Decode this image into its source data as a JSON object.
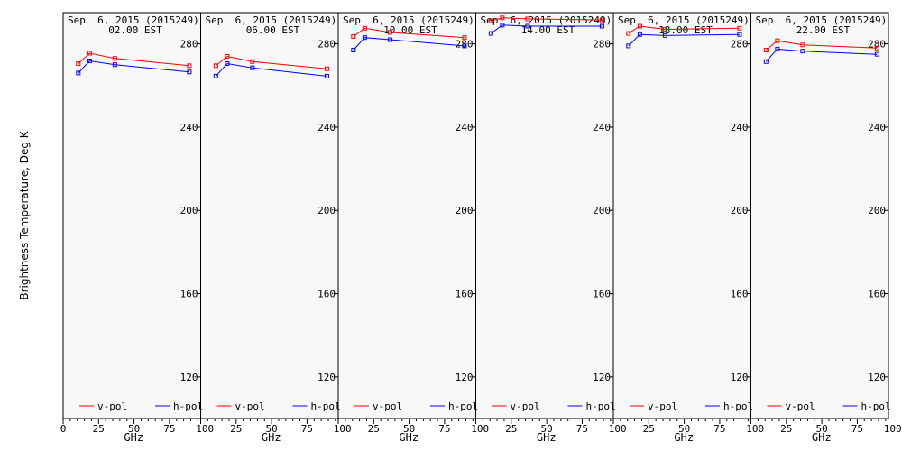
{
  "chart_data": {
    "type": "line",
    "ylabel": "Brightness Temperature, Deg K",
    "ylim": [
      100,
      295
    ],
    "xlim": [
      0,
      97
    ],
    "yticks": [
      120,
      160,
      200,
      240,
      280
    ],
    "xtick_labels": [
      "0",
      "25",
      "50",
      "75",
      "100"
    ],
    "xtick_values": [
      0,
      25,
      50,
      75,
      100
    ],
    "grid": false,
    "legend_placement": "bottom",
    "colors": {
      "v-pol": "#ff0000",
      "h-pol": "#0000ff"
    },
    "panels": [
      {
        "title": "Sep  6, 2015 (2015249)",
        "time": "02.00 EST",
        "xlabel": "GHz",
        "series": [
          {
            "name": "v-pol",
            "x": [
              10.7,
              18.7,
              36.5,
              89.0
            ],
            "values": [
              270.5,
              275.5,
              273.0,
              269.5
            ]
          },
          {
            "name": "h-pol",
            "x": [
              10.7,
              18.7,
              36.5,
              89.0
            ],
            "values": [
              266.0,
              271.8,
              270.0,
              266.5
            ]
          }
        ]
      },
      {
        "title": "Sep  6, 2015 (2015249)",
        "time": "06.00 EST",
        "xlabel": "GHz",
        "series": [
          {
            "name": "v-pol",
            "x": [
              10.7,
              18.7,
              36.5,
              89.0
            ],
            "values": [
              269.5,
              274.0,
              271.5,
              268.0
            ]
          },
          {
            "name": "h-pol",
            "x": [
              10.7,
              18.7,
              36.5,
              89.0
            ],
            "values": [
              264.5,
              270.5,
              268.5,
              264.5
            ]
          }
        ]
      },
      {
        "title": "Sep  6, 2015 (2015249)",
        "time": "10.00 EST",
        "xlabel": "GHz",
        "series": [
          {
            "name": "v-pol",
            "x": [
              10.7,
              18.7,
              36.5,
              89.0
            ],
            "values": [
              283.5,
              287.5,
              285.5,
              283.0
            ]
          },
          {
            "name": "h-pol",
            "x": [
              10.7,
              18.7,
              36.5,
              89.0
            ],
            "values": [
              277.0,
              283.0,
              282.0,
              279.0
            ]
          }
        ]
      },
      {
        "title": "Sep  6, 2015 (2015249)",
        "time": "14.00 EST",
        "xlabel": "GHz",
        "series": [
          {
            "name": "v-pol",
            "x": [
              10.7,
              18.7,
              36.5,
              89.0
            ],
            "values": [
              291.0,
              292.5,
              292.0,
              291.5
            ]
          },
          {
            "name": "h-pol",
            "x": [
              10.7,
              18.7,
              36.5,
              89.0
            ],
            "values": [
              285.0,
              289.0,
              288.5,
              288.5
            ]
          }
        ]
      },
      {
        "title": "Sep  6, 2015 (2015249)",
        "time": "18.00 EST",
        "xlabel": "GHz",
        "series": [
          {
            "name": "v-pol",
            "x": [
              10.7,
              18.7,
              36.5,
              89.0
            ],
            "values": [
              285.0,
              288.5,
              287.0,
              287.5
            ]
          },
          {
            "name": "h-pol",
            "x": [
              10.7,
              18.7,
              36.5,
              89.0
            ],
            "values": [
              279.0,
              284.5,
              284.0,
              284.5
            ]
          }
        ]
      },
      {
        "title": "Sep  6, 2015 (2015249)",
        "time": "22.00 EST",
        "xlabel": "GHz",
        "series": [
          {
            "name": "v-pol",
            "x": [
              10.7,
              18.7,
              36.5,
              89.0
            ],
            "values": [
              277.0,
              281.5,
              279.5,
              278.0
            ]
          },
          {
            "name": "h-pol",
            "x": [
              10.7,
              18.7,
              36.5,
              89.0
            ],
            "values": [
              271.5,
              277.5,
              276.5,
              275.0
            ]
          }
        ]
      }
    ]
  }
}
